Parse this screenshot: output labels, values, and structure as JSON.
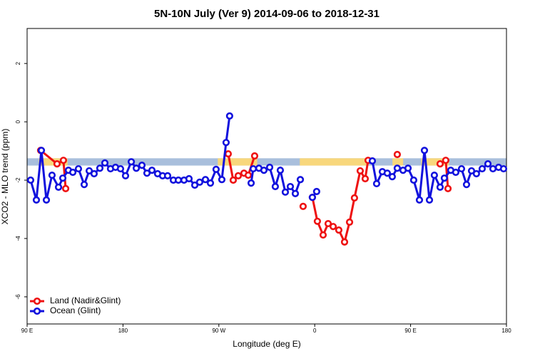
{
  "chart_data": {
    "type": "line",
    "title": "5N-10N July (Ver 9)   2014-09-06 to 2018-12-31",
    "x_label": "Longitude (deg E)",
    "y_label": "XCO2 - MLO trend (ppm)",
    "xlim": [
      90,
      540
    ],
    "xticks": [
      {
        "value": 90,
        "label": "90 E"
      },
      180,
      {
        "value": 270,
        "label": "90 W"
      },
      {
        "value": 360,
        "label": "0"
      },
      {
        "value": 450,
        "label": "90 E"
      },
      {
        "value": 540,
        "label": "180"
      }
    ],
    "ylim": [
      -6.93,
      3.2
    ],
    "yticks": [
      -6,
      -4,
      -2,
      0,
      2
    ],
    "legend": "bottom-left",
    "band": {
      "ylim": [
        -1.5,
        -1.25
      ],
      "color": "#a9bfdc",
      "land_color": "#f8d77c",
      "land_spans": [
        [
          101,
          128
        ],
        [
          269,
          306
        ],
        [
          346,
          409
        ],
        [
          433,
          443
        ],
        [
          460,
          486
        ]
      ]
    },
    "series": [
      {
        "name": "Land (Nadir&Glint)",
        "color": "#ee1111",
        "x": [
          102.7,
          118.1,
          124.1,
          126.2,
          null,
          278.8,
          283.5,
          288.2,
          293.6,
          297.6,
          303.6,
          null,
          349.1,
          null,
          357.8,
          362.5,
          367.9,
          372.6,
          377.3,
          382.6,
          388.0,
          392.7,
          397.3,
          402.7,
          407.4,
          410.1,
          null,
          437.5,
          null,
          477.7,
          483.0,
          485.1
        ],
        "values": [
          -0.98,
          -1.44,
          -1.32,
          -2.29,
          null,
          -1.1,
          -2.0,
          -1.85,
          -1.76,
          -1.83,
          -1.17,
          null,
          -2.9,
          null,
          -2.59,
          -3.41,
          -3.88,
          -3.49,
          -3.59,
          -3.71,
          -4.12,
          -3.44,
          -2.61,
          -1.68,
          -1.95,
          -1.32,
          null,
          -1.12,
          null,
          -1.44,
          -1.32,
          -2.29
        ]
      },
      {
        "name": "Ocean (Glint)",
        "color": "#1111dd",
        "x": [
          93.3,
          98.7,
          103.4,
          108.1,
          113.4,
          119.5,
          123.5,
          128.8,
          132.9,
          138.2,
          143.6,
          148.3,
          152.9,
          158.3,
          163.0,
          168.3,
          173.0,
          177.7,
          182.4,
          187.8,
          192.5,
          197.8,
          202.5,
          207.2,
          212.5,
          217.2,
          221.9,
          227.3,
          232.0,
          237.3,
          242.0,
          247.4,
          252.0,
          257.4,
          262.1,
          267.4,
          272.8,
          276.8,
          280.1,
          null,
          300.3,
          302.3,
          307.6,
          312.3,
          317.7,
          323.0,
          327.7,
          332.4,
          337.1,
          341.8,
          346.5,
          null,
          357.8,
          361.8,
          null,
          414.1,
          418.1,
          423.5,
          428.1,
          432.8,
          437.5,
          442.9,
          447.6,
          452.9,
          458.3,
          463.0,
          467.7,
          472.3,
          477.7,
          481.7,
          487.7,
          492.4,
          497.8,
          502.5,
          507.2,
          511.8,
          517.2,
          522.6,
          527.3,
          532.6,
          537.3
        ],
        "values": [
          -2.0,
          -2.68,
          -0.98,
          -2.68,
          -1.83,
          -2.24,
          -1.93,
          -1.66,
          -1.73,
          -1.61,
          -2.15,
          -1.68,
          -1.78,
          -1.59,
          -1.41,
          -1.61,
          -1.56,
          -1.61,
          -1.85,
          -1.37,
          -1.59,
          -1.49,
          -1.76,
          -1.66,
          -1.78,
          -1.85,
          -1.85,
          -2.0,
          -2.0,
          -2.0,
          -1.95,
          -2.17,
          -2.07,
          -1.98,
          -2.1,
          -1.63,
          -1.98,
          -0.71,
          0.2,
          null,
          -2.1,
          -1.61,
          -1.59,
          -1.66,
          -1.56,
          -2.22,
          -1.66,
          -2.41,
          -2.22,
          -2.46,
          -1.98,
          null,
          -2.59,
          -2.39,
          null,
          -1.34,
          -2.12,
          -1.71,
          -1.76,
          -1.88,
          -1.59,
          -1.66,
          -1.59,
          -2.0,
          -2.68,
          -0.98,
          -2.68,
          -1.83,
          -2.24,
          -1.93,
          -1.66,
          -1.73,
          -1.61,
          -2.15,
          -1.68,
          -1.78,
          -1.61,
          -1.44,
          -1.61,
          -1.56,
          -1.61
        ]
      }
    ]
  }
}
